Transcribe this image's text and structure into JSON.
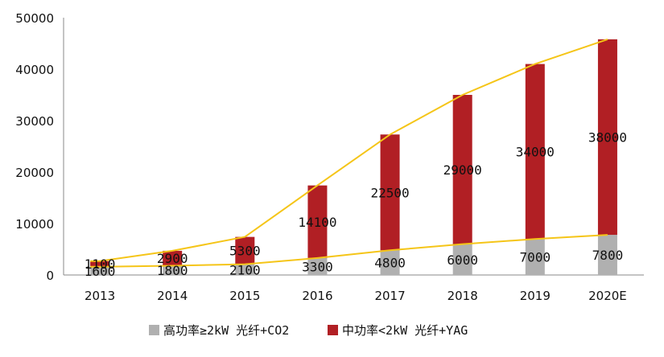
{
  "chart_data": {
    "type": "bar",
    "stacked": true,
    "categories": [
      "2013",
      "2014",
      "2015",
      "2016",
      "2017",
      "2018",
      "2019",
      "2020E"
    ],
    "series": [
      {
        "name": "高功率≥2kW 光纤+CO2",
        "color": "#b0b0b0",
        "values": [
          1600,
          1800,
          2100,
          3300,
          4800,
          6000,
          7000,
          7800
        ]
      },
      {
        "name": "中功率<2kW 光纤+YAG",
        "color": "#b11f24",
        "values": [
          1100,
          2900,
          5300,
          14100,
          22500,
          29000,
          34000,
          38000
        ]
      }
    ],
    "lines": {
      "color": "#f5c518"
    },
    "y_ticks": [
      "0",
      "10000",
      "20000",
      "30000",
      "40000",
      "50000"
    ],
    "ylim": [
      0,
      50000
    ],
    "title": "",
    "xlabel": "",
    "ylabel": "",
    "grid": false,
    "legend": "bottom"
  }
}
